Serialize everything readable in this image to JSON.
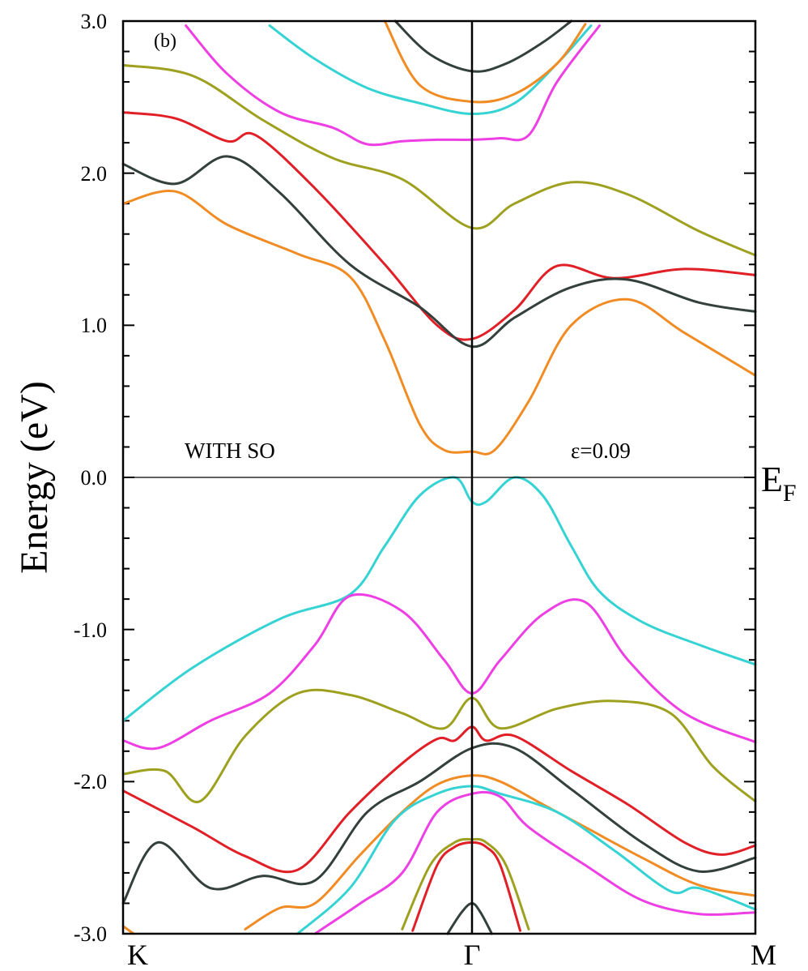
{
  "chart_data": {
    "type": "line",
    "panel_label": "(b)",
    "ylabel": "Energy (eV)",
    "ylim": [
      -3.0,
      3.0
    ],
    "y_ticks": [
      "3.0",
      "2.0",
      "1.0",
      "0.0",
      "-1.0",
      "-2.0",
      "-3.0"
    ],
    "x_ticks": [
      "K",
      "Γ",
      "M"
    ],
    "x_tick_positions": [
      0,
      1,
      2
    ],
    "fermi_label": "E",
    "fermi_sub": "F",
    "annotation_left": "WITH  SO",
    "annotation_right": "ε=0.09",
    "grid": false,
    "colors": {
      "cyan": "#35d3d3",
      "magenta": "#ee3fe4",
      "olive": "#9ea11f",
      "red": "#e11f27",
      "dark": "#34403b",
      "orange": "#f18c25"
    },
    "series": [
      {
        "color": "olive",
        "x": [
          0,
          0.2,
          0.4,
          0.6,
          0.8,
          1.0,
          1.15,
          1.35,
          1.55,
          1.8,
          2.0
        ],
        "y": [
          2.71,
          2.64,
          2.35,
          2.1,
          1.96,
          1.64,
          1.8,
          1.94,
          1.86,
          1.62,
          1.46
        ]
      },
      {
        "color": "red",
        "x": [
          0,
          0.15,
          0.3,
          0.38,
          0.55,
          0.75,
          0.9,
          1.0,
          1.15,
          1.3,
          1.5,
          1.75,
          2.0
        ],
        "y": [
          2.4,
          2.36,
          2.21,
          2.25,
          1.9,
          1.4,
          1.0,
          0.91,
          1.1,
          1.39,
          1.31,
          1.37,
          1.33
        ]
      },
      {
        "color": "dark",
        "x": [
          0,
          0.15,
          0.3,
          0.45,
          0.65,
          0.85,
          1.0,
          1.15,
          1.35,
          1.55,
          1.8,
          2.0
        ],
        "y": [
          2.06,
          1.93,
          2.11,
          1.87,
          1.4,
          1.12,
          0.86,
          1.05,
          1.25,
          1.3,
          1.15,
          1.09
        ]
      },
      {
        "color": "orange",
        "x": [
          0,
          0.15,
          0.3,
          0.5,
          0.65,
          0.75,
          0.85,
          0.92,
          1.0,
          1.08,
          1.2,
          1.35,
          1.55,
          1.75,
          2.0
        ],
        "y": [
          1.8,
          1.88,
          1.66,
          1.47,
          1.32,
          0.9,
          0.35,
          0.18,
          0.17,
          0.18,
          0.5,
          1.0,
          1.17,
          0.95,
          0.67
        ]
      },
      {
        "color": "magenta",
        "x": [
          0.18,
          0.3,
          0.45,
          0.6,
          0.7,
          0.8,
          0.9,
          1.0,
          1.1,
          1.2,
          1.3,
          1.45
        ],
        "y": [
          2.97,
          2.65,
          2.4,
          2.3,
          2.19,
          2.21,
          2.22,
          2.22,
          2.23,
          2.25,
          2.6,
          2.97
        ]
      },
      {
        "color": "cyan",
        "x": [
          0.42,
          0.55,
          0.7,
          0.85,
          1.0,
          1.15,
          1.3,
          1.42
        ],
        "y": [
          2.97,
          2.75,
          2.56,
          2.46,
          2.39,
          2.46,
          2.72,
          2.97
        ]
      },
      {
        "color": "orange",
        "x": [
          0.75,
          0.85,
          1.0,
          1.15,
          1.3,
          1.4
        ],
        "y": [
          3.0,
          2.58,
          2.47,
          2.52,
          2.72,
          2.98
        ]
      },
      {
        "color": "dark",
        "x": [
          0.78,
          0.88,
          1.0,
          1.12,
          1.25,
          1.35
        ],
        "y": [
          3.0,
          2.78,
          2.67,
          2.72,
          2.86,
          3.0
        ]
      },
      {
        "color": "cyan",
        "x": [
          0,
          0.2,
          0.45,
          0.65,
          0.75,
          0.85,
          0.95,
          1.0,
          1.05,
          1.15,
          1.25,
          1.35,
          1.45,
          1.6,
          1.8,
          2.0
        ],
        "y": [
          -1.6,
          -1.25,
          -0.93,
          -0.77,
          -0.45,
          -0.12,
          0.0,
          -0.16,
          -0.16,
          0.0,
          -0.12,
          -0.45,
          -0.75,
          -0.95,
          -1.1,
          -1.23
        ]
      },
      {
        "color": "magenta",
        "x": [
          0,
          0.1,
          0.25,
          0.42,
          0.55,
          0.65,
          0.8,
          0.92,
          1.0,
          1.1,
          1.25,
          1.4,
          1.55,
          1.75,
          2.0
        ],
        "y": [
          -1.73,
          -1.78,
          -1.6,
          -1.42,
          -1.1,
          -0.78,
          -0.88,
          -1.2,
          -1.42,
          -1.2,
          -0.9,
          -0.82,
          -1.2,
          -1.55,
          -1.74
        ]
      },
      {
        "color": "olive",
        "x": [
          0,
          0.12,
          0.22,
          0.35,
          0.5,
          0.65,
          0.8,
          0.92,
          1.0,
          1.1,
          1.3,
          1.5,
          1.7,
          1.85,
          2.0
        ],
        "y": [
          -1.95,
          -1.93,
          -2.13,
          -1.7,
          -1.42,
          -1.43,
          -1.55,
          -1.65,
          -1.45,
          -1.65,
          -1.52,
          -1.47,
          -1.55,
          -1.9,
          -2.13
        ]
      },
      {
        "color": "red",
        "x": [
          0,
          0.2,
          0.35,
          0.5,
          0.65,
          0.8,
          0.9,
          0.95,
          1.0,
          1.05,
          1.15,
          1.35,
          1.55,
          1.75,
          1.88,
          2.0
        ],
        "y": [
          -2.06,
          -2.3,
          -2.49,
          -2.58,
          -2.2,
          -1.88,
          -1.72,
          -1.73,
          -1.64,
          -1.73,
          -1.7,
          -1.93,
          -2.15,
          -2.4,
          -2.48,
          -2.42
        ]
      },
      {
        "color": "dark",
        "x": [
          0,
          0.1,
          0.25,
          0.4,
          0.55,
          0.7,
          0.85,
          1.0,
          1.15,
          1.35,
          1.6,
          1.8,
          2.0
        ],
        "y": [
          -2.8,
          -2.4,
          -2.7,
          -2.62,
          -2.65,
          -2.2,
          -2.0,
          -1.78,
          -1.78,
          -2.05,
          -2.4,
          -2.59,
          -2.5
        ]
      },
      {
        "color": "orange",
        "x": [
          0.35,
          0.45,
          0.55,
          0.68,
          0.8,
          0.9,
          1.0,
          1.1,
          1.25,
          1.4,
          1.6,
          1.8,
          2.0
        ],
        "y": [
          -2.97,
          -2.83,
          -2.8,
          -2.48,
          -2.2,
          -2.02,
          -1.96,
          -2.0,
          -2.15,
          -2.3,
          -2.5,
          -2.68,
          -2.75
        ]
      },
      {
        "color": "cyan",
        "x": [
          0.5,
          0.65,
          0.78,
          0.9,
          1.0,
          1.1,
          1.3,
          1.5,
          1.7,
          1.8,
          2.0
        ],
        "y": [
          -3.0,
          -2.7,
          -2.25,
          -2.08,
          -2.03,
          -2.08,
          -2.2,
          -2.45,
          -2.72,
          -2.7,
          -2.84
        ]
      },
      {
        "color": "magenta",
        "x": [
          0.55,
          0.68,
          0.8,
          0.9,
          1.0,
          1.1,
          1.2,
          1.4,
          1.6,
          1.8,
          2.0
        ],
        "y": [
          -3.0,
          -2.8,
          -2.6,
          -2.2,
          -2.08,
          -2.1,
          -2.3,
          -2.55,
          -2.78,
          -2.87,
          -2.86
        ]
      },
      {
        "color": "olive",
        "x": [
          0.8,
          0.88,
          0.95,
          1.0,
          1.05,
          1.12,
          1.2
        ],
        "y": [
          -2.97,
          -2.55,
          -2.4,
          -2.38,
          -2.4,
          -2.55,
          -2.97
        ]
      },
      {
        "color": "red",
        "x": [
          0.83,
          0.9,
          0.95,
          1.0,
          1.05,
          1.1,
          1.17
        ],
        "y": [
          -2.98,
          -2.55,
          -2.43,
          -2.4,
          -2.43,
          -2.55,
          -2.98
        ]
      },
      {
        "color": "dark",
        "x": [
          0.93,
          0.97,
          1.0,
          1.03,
          1.07
        ],
        "y": [
          -3.0,
          -2.86,
          -2.8,
          -2.86,
          -3.0
        ]
      },
      {
        "color": "orange",
        "x": [
          0,
          0.03
        ],
        "y": [
          -2.95,
          -3.0
        ]
      }
    ]
  }
}
